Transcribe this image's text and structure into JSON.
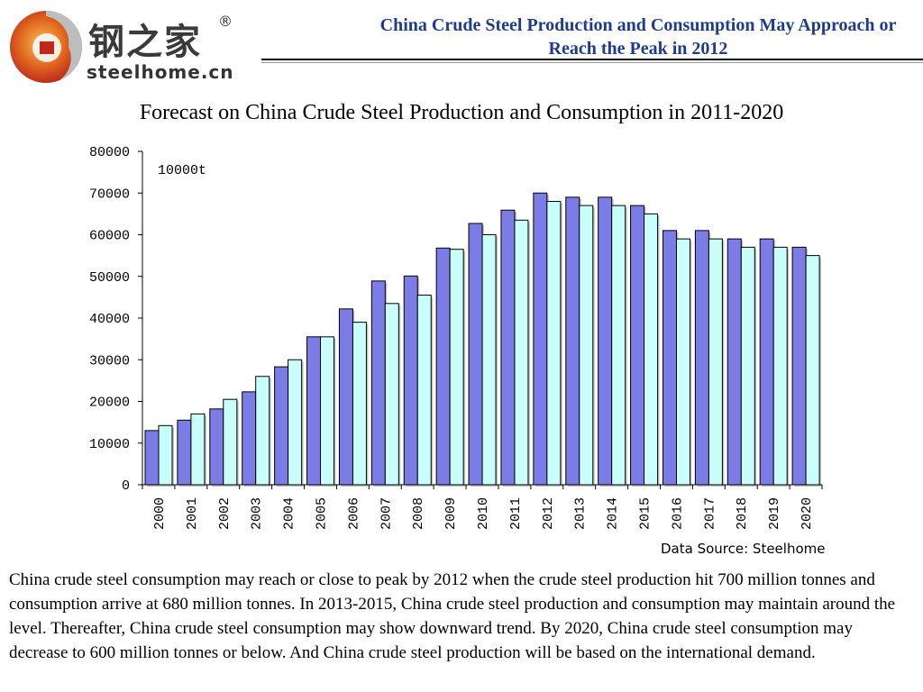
{
  "header": {
    "logo_cn": "钢之家",
    "logo_reg": "®",
    "logo_en": "steelhome.cn",
    "title": "China Crude Steel Production and Consumption May Approach or Reach the Peak in 2012",
    "title_color": "#1f3c8c"
  },
  "chart_data": {
    "type": "bar",
    "title": "Forecast on China Crude Steel Production and Consumption in 2011-2020",
    "unit_label": "10000t",
    "ylim": [
      0,
      80000
    ],
    "yticks": [
      0,
      10000,
      20000,
      30000,
      40000,
      50000,
      60000,
      70000,
      80000
    ],
    "grid": false,
    "categories": [
      "2000",
      "2001",
      "2002",
      "2003",
      "2004",
      "2005",
      "2006",
      "2007",
      "2008",
      "2009",
      "2010",
      "2011",
      "2012",
      "2013",
      "2014",
      "2015",
      "2016",
      "2017",
      "2018",
      "2019",
      "2020"
    ],
    "series": [
      {
        "color": "#7c7ce6",
        "values": [
          13000,
          15500,
          18200,
          22300,
          28300,
          35500,
          42200,
          48900,
          50100,
          56800,
          62700,
          65900,
          70000,
          69000,
          69000,
          67000,
          61000,
          61000,
          59000,
          59000,
          57000
        ]
      },
      {
        "color": "#c8fffa",
        "values": [
          14200,
          17000,
          20500,
          26000,
          30000,
          35500,
          39000,
          43500,
          45500,
          56500,
          60000,
          63500,
          68000,
          67000,
          67000,
          65000,
          59000,
          59000,
          57000,
          57000,
          55000
        ]
      }
    ]
  },
  "source": "Data Source: Steelhome",
  "body": "China crude steel consumption may reach or close to peak by 2012 when the crude steel production hit 700 million tonnes and consumption arrive at 680 million tonnes. In 2013-2015, China crude steel production and consumption may maintain around the level. Thereafter, China crude steel consumption may show downward trend. By 2020, China crude steel consumption may decrease to 600 million tonnes or below. And China crude steel production will be based on the international demand."
}
